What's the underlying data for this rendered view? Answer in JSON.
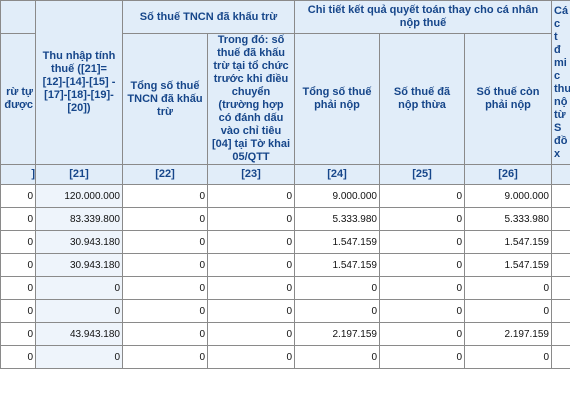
{
  "groups": {
    "paid_tax": "Số thuế TNCN đã khấu trừ",
    "settlement_detail": "Chi tiết kết quả quyết toán thay cho cá nhân nộp thuế",
    "right_cut": "Cá\nc\nt\nđ\nmi\nc\nthu\nnộ\ntừ S\nđồ\nx"
  },
  "headers": {
    "left_cut": "rừ tự\nđược",
    "c21": "Thu nhập tính thuế ([21]= [12]-[14]-[15] -[17]-[18]-[19]-[20])",
    "c22": "Tổng số thuế TNCN đã khấu trừ",
    "c23": "Trong đó: số thuế đã khấu trừ tại tổ chức trước khi điều chuyển (trường hợp có đánh dấu vào chỉ tiêu [04] tại Tờ khai 05/QTT",
    "c24": "Tổng số thuế phải nộp",
    "c25": "Số thuế đã nộp thừa",
    "c26": "Số thuế còn phải nộp"
  },
  "codes": {
    "left": "]",
    "c21": "[21]",
    "c22": "[22]",
    "c23": "[23]",
    "c24": "[24]",
    "c25": "[25]",
    "c26": "[26]",
    "right": ""
  },
  "rows": [
    {
      "left": "0",
      "c21": "120.000.000",
      "c22": "0",
      "c23": "0",
      "c24": "9.000.000",
      "c25": "0",
      "c26": "9.000.000",
      "right": ""
    },
    {
      "left": "0",
      "c21": "83.339.800",
      "c22": "0",
      "c23": "0",
      "c24": "5.333.980",
      "c25": "0",
      "c26": "5.333.980",
      "right": ""
    },
    {
      "left": "0",
      "c21": "30.943.180",
      "c22": "0",
      "c23": "0",
      "c24": "1.547.159",
      "c25": "0",
      "c26": "1.547.159",
      "right": ""
    },
    {
      "left": "0",
      "c21": "30.943.180",
      "c22": "0",
      "c23": "0",
      "c24": "1.547.159",
      "c25": "0",
      "c26": "1.547.159",
      "right": ""
    },
    {
      "left": "0",
      "c21": "0",
      "c22": "0",
      "c23": "0",
      "c24": "0",
      "c25": "0",
      "c26": "0",
      "right": ""
    },
    {
      "left": "0",
      "c21": "0",
      "c22": "0",
      "c23": "0",
      "c24": "0",
      "c25": "0",
      "c26": "0",
      "right": ""
    },
    {
      "left": "0",
      "c21": "43.943.180",
      "c22": "0",
      "c23": "0",
      "c24": "2.197.159",
      "c25": "0",
      "c26": "2.197.159",
      "right": ""
    },
    {
      "left": "0",
      "c21": "0",
      "c22": "0",
      "c23": "0",
      "c24": "0",
      "c25": "0",
      "c26": "0",
      "right": ""
    }
  ]
}
